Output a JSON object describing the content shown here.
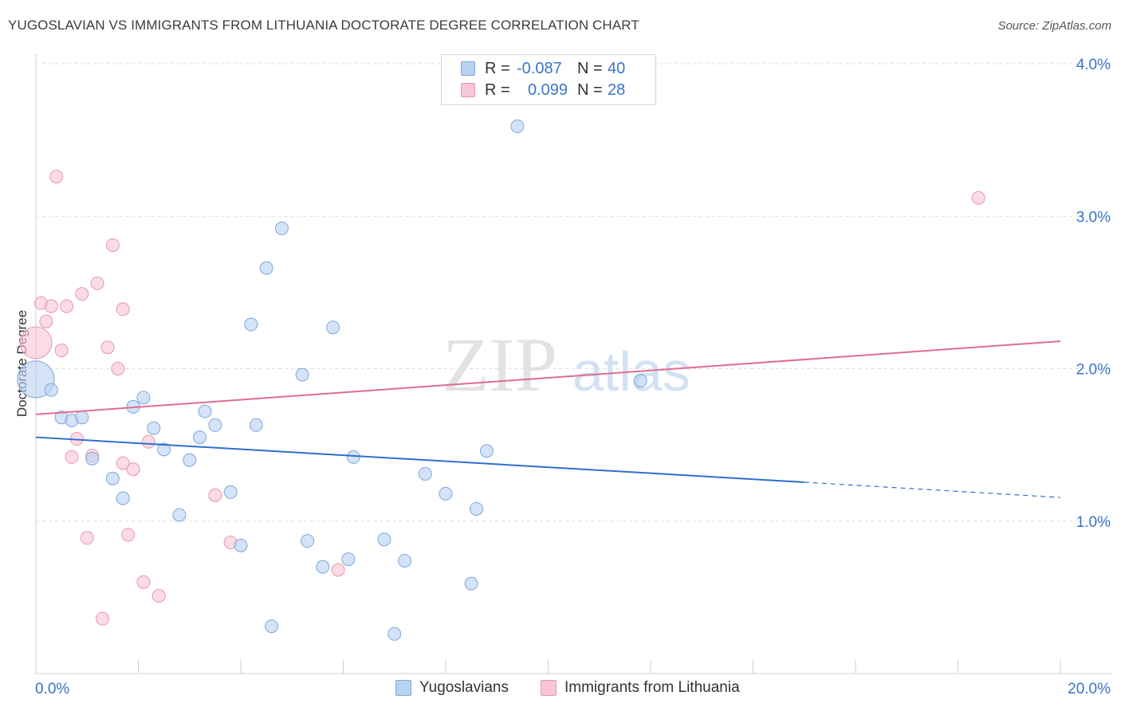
{
  "title": "YUGOSLAVIAN VS IMMIGRANTS FROM LITHUANIA DOCTORATE DEGREE CORRELATION CHART",
  "source": "Source: ZipAtlas.com",
  "watermark": {
    "zip": "ZIP",
    "atlas": "atlas"
  },
  "legend": {
    "rows": [
      {
        "r_label": "R =",
        "r_value": "-0.087",
        "n_label": "N =",
        "n_value": "40"
      },
      {
        "r_label": "R =",
        "r_value": "0.099",
        "n_label": "N =",
        "n_value": "28"
      }
    ]
  },
  "bottom_legend": {
    "series1": "Yugoslavians",
    "series2": "Immigrants from Lithuania"
  },
  "colors": {
    "blue_fill": "#b9d2f2",
    "blue_stroke": "#7ea7dc",
    "blue_line": "#2e6fce",
    "pink_fill": "#f8c6d4",
    "pink_stroke": "#e995b0",
    "pink_line": "#e06c93",
    "axis_text": "#3a74c9",
    "grid": "#dddddd"
  },
  "chart_data": {
    "type": "scatter",
    "title": "YUGOSLAVIAN VS IMMIGRANTS FROM LITHUANIA DOCTORATE DEGREE CORRELATION CHART",
    "xlabel": "",
    "ylabel": "Doctorate Degree",
    "xlim": [
      0,
      20
    ],
    "ylim": [
      0,
      4.0
    ],
    "y_ticks": [
      1.0,
      2.0,
      3.0,
      4.0
    ],
    "y_tick_labels": [
      "1.0%",
      "2.0%",
      "3.0%",
      "4.0%"
    ],
    "x_tick_labels": [
      "0.0%",
      "20.0%"
    ],
    "series": [
      {
        "name": "Yugoslavians",
        "R": -0.087,
        "N": 40,
        "trend": {
          "x0": 0,
          "y0": 1.55,
          "x1": 15.0,
          "y1": 1.255,
          "dash_to": 20,
          "dash_y": 1.155
        },
        "points": [
          {
            "x": 0.0,
            "y": 1.93,
            "s": 3
          },
          {
            "x": 0.3,
            "y": 1.86,
            "s": 1
          },
          {
            "x": 0.5,
            "y": 1.68,
            "s": 1
          },
          {
            "x": 0.7,
            "y": 1.66,
            "s": 1
          },
          {
            "x": 0.9,
            "y": 1.68,
            "s": 1
          },
          {
            "x": 1.1,
            "y": 1.41,
            "s": 1
          },
          {
            "x": 1.5,
            "y": 1.28,
            "s": 1
          },
          {
            "x": 1.7,
            "y": 1.15,
            "s": 1
          },
          {
            "x": 1.9,
            "y": 1.75,
            "s": 1
          },
          {
            "x": 2.1,
            "y": 1.81,
            "s": 1
          },
          {
            "x": 2.3,
            "y": 1.61,
            "s": 1
          },
          {
            "x": 2.5,
            "y": 1.47,
            "s": 1
          },
          {
            "x": 2.8,
            "y": 1.04,
            "s": 1
          },
          {
            "x": 3.0,
            "y": 1.4,
            "s": 1
          },
          {
            "x": 3.2,
            "y": 1.55,
            "s": 1
          },
          {
            "x": 3.3,
            "y": 1.72,
            "s": 1
          },
          {
            "x": 3.5,
            "y": 1.63,
            "s": 1
          },
          {
            "x": 3.8,
            "y": 1.19,
            "s": 1
          },
          {
            "x": 4.0,
            "y": 0.84,
            "s": 1
          },
          {
            "x": 4.2,
            "y": 2.29,
            "s": 1
          },
          {
            "x": 4.3,
            "y": 1.63,
            "s": 1
          },
          {
            "x": 4.5,
            "y": 2.66,
            "s": 1
          },
          {
            "x": 4.6,
            "y": 0.31,
            "s": 1
          },
          {
            "x": 4.8,
            "y": 2.92,
            "s": 1
          },
          {
            "x": 5.2,
            "y": 1.96,
            "s": 1
          },
          {
            "x": 5.3,
            "y": 0.87,
            "s": 1
          },
          {
            "x": 5.6,
            "y": 0.7,
            "s": 1
          },
          {
            "x": 5.8,
            "y": 2.27,
            "s": 1
          },
          {
            "x": 6.1,
            "y": 0.75,
            "s": 1
          },
          {
            "x": 6.2,
            "y": 1.42,
            "s": 1
          },
          {
            "x": 6.8,
            "y": 0.88,
            "s": 1
          },
          {
            "x": 7.0,
            "y": 0.26,
            "s": 1
          },
          {
            "x": 7.2,
            "y": 0.74,
            "s": 1
          },
          {
            "x": 7.6,
            "y": 1.31,
            "s": 1
          },
          {
            "x": 8.0,
            "y": 1.18,
            "s": 1
          },
          {
            "x": 8.5,
            "y": 0.59,
            "s": 1
          },
          {
            "x": 8.6,
            "y": 1.08,
            "s": 1
          },
          {
            "x": 8.8,
            "y": 1.46,
            "s": 1
          },
          {
            "x": 9.4,
            "y": 3.59,
            "s": 1
          },
          {
            "x": 11.8,
            "y": 1.92,
            "s": 1
          }
        ]
      },
      {
        "name": "Immigrants from Lithuania",
        "R": 0.099,
        "N": 28,
        "trend": {
          "x0": 0,
          "y0": 1.7,
          "x1": 20,
          "y1": 2.18
        },
        "points": [
          {
            "x": 0.0,
            "y": 2.17,
            "s": 2
          },
          {
            "x": 0.1,
            "y": 2.43,
            "s": 1
          },
          {
            "x": 0.2,
            "y": 2.31,
            "s": 1
          },
          {
            "x": 0.3,
            "y": 2.41,
            "s": 1
          },
          {
            "x": 0.4,
            "y": 3.26,
            "s": 1
          },
          {
            "x": 0.5,
            "y": 2.12,
            "s": 1
          },
          {
            "x": 0.6,
            "y": 2.41,
            "s": 1
          },
          {
            "x": 0.7,
            "y": 1.42,
            "s": 1
          },
          {
            "x": 0.8,
            "y": 1.54,
            "s": 1
          },
          {
            "x": 0.9,
            "y": 2.49,
            "s": 1
          },
          {
            "x": 1.0,
            "y": 0.89,
            "s": 1
          },
          {
            "x": 1.1,
            "y": 1.43,
            "s": 1
          },
          {
            "x": 1.2,
            "y": 2.56,
            "s": 1
          },
          {
            "x": 1.3,
            "y": 0.36,
            "s": 1
          },
          {
            "x": 1.4,
            "y": 2.14,
            "s": 1
          },
          {
            "x": 1.5,
            "y": 2.81,
            "s": 1
          },
          {
            "x": 1.6,
            "y": 2.0,
            "s": 1
          },
          {
            "x": 1.7,
            "y": 2.39,
            "s": 1
          },
          {
            "x": 1.7,
            "y": 1.38,
            "s": 1
          },
          {
            "x": 1.8,
            "y": 0.91,
            "s": 1
          },
          {
            "x": 1.9,
            "y": 1.34,
            "s": 1
          },
          {
            "x": 2.1,
            "y": 0.6,
            "s": 1
          },
          {
            "x": 2.2,
            "y": 1.52,
            "s": 1
          },
          {
            "x": 2.4,
            "y": 0.51,
            "s": 1
          },
          {
            "x": 3.5,
            "y": 1.17,
            "s": 1
          },
          {
            "x": 3.8,
            "y": 0.86,
            "s": 1
          },
          {
            "x": 5.9,
            "y": 0.68,
            "s": 1
          },
          {
            "x": 18.4,
            "y": 3.12,
            "s": 1
          }
        ]
      }
    ]
  }
}
